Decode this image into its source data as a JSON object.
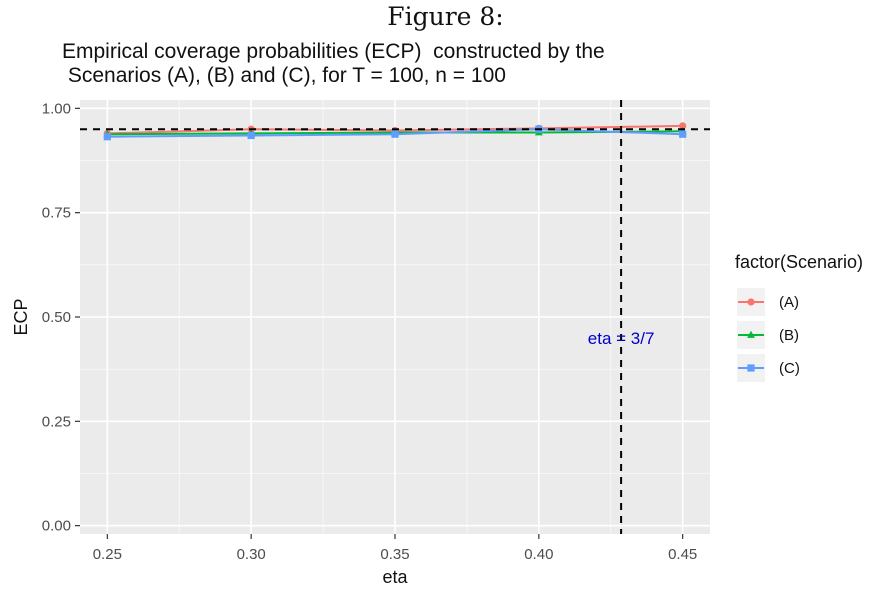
{
  "figure_caption": "Figure 8:",
  "chart_title_line1": "Empirical coverage probabilities (ECP)  constructed by the",
  "chart_title_line2": " Scenarios (A), (B) and (C), for T = 100, n = 100",
  "chart_data": {
    "type": "line",
    "title": "Empirical coverage probabilities (ECP)  constructed by the Scenarios (A), (B) and (C), for T = 100, n = 100",
    "xlabel": "eta",
    "ylabel": "ECP",
    "x": [
      0.25,
      0.3,
      0.35,
      0.4,
      0.45
    ],
    "xlim": [
      0.2405,
      0.4595
    ],
    "ylim": [
      -0.02,
      1.02
    ],
    "x_ticks": [
      "0.25",
      "0.30",
      "0.35",
      "0.40",
      "0.45"
    ],
    "y_ticks": [
      "0.00",
      "0.25",
      "0.50",
      "0.75",
      "1.00"
    ],
    "x_tick_values": [
      0.25,
      0.3,
      0.35,
      0.4,
      0.45
    ],
    "y_tick_values": [
      0,
      0.25,
      0.5,
      0.75,
      1.0
    ],
    "grid": true,
    "legend_title": "factor(Scenario)",
    "legend_position": "right",
    "series": [
      {
        "name": "(A)",
        "values": [
          0.94,
          0.95,
          0.947,
          0.952,
          0.958
        ],
        "color": "#F8766D",
        "marker": "circle"
      },
      {
        "name": "(B)",
        "values": [
          0.938,
          0.94,
          0.942,
          0.942,
          0.945
        ],
        "color": "#00BA38",
        "marker": "triangle"
      },
      {
        "name": "(C)",
        "values": [
          0.932,
          0.935,
          0.938,
          0.95,
          0.938
        ],
        "color": "#619CFF",
        "marker": "square"
      }
    ],
    "reference_lines": [
      {
        "orientation": "horizontal",
        "value": 0.95,
        "style": "dashed"
      },
      {
        "orientation": "vertical",
        "value": 0.4286,
        "style": "dashed"
      }
    ],
    "annotation": {
      "text": "eta = 3/7",
      "x": 0.4286,
      "y": 0.45,
      "color": "#0000CC"
    },
    "panel_background": "#EBEBEB",
    "grid_color": "#FFFFFF"
  }
}
